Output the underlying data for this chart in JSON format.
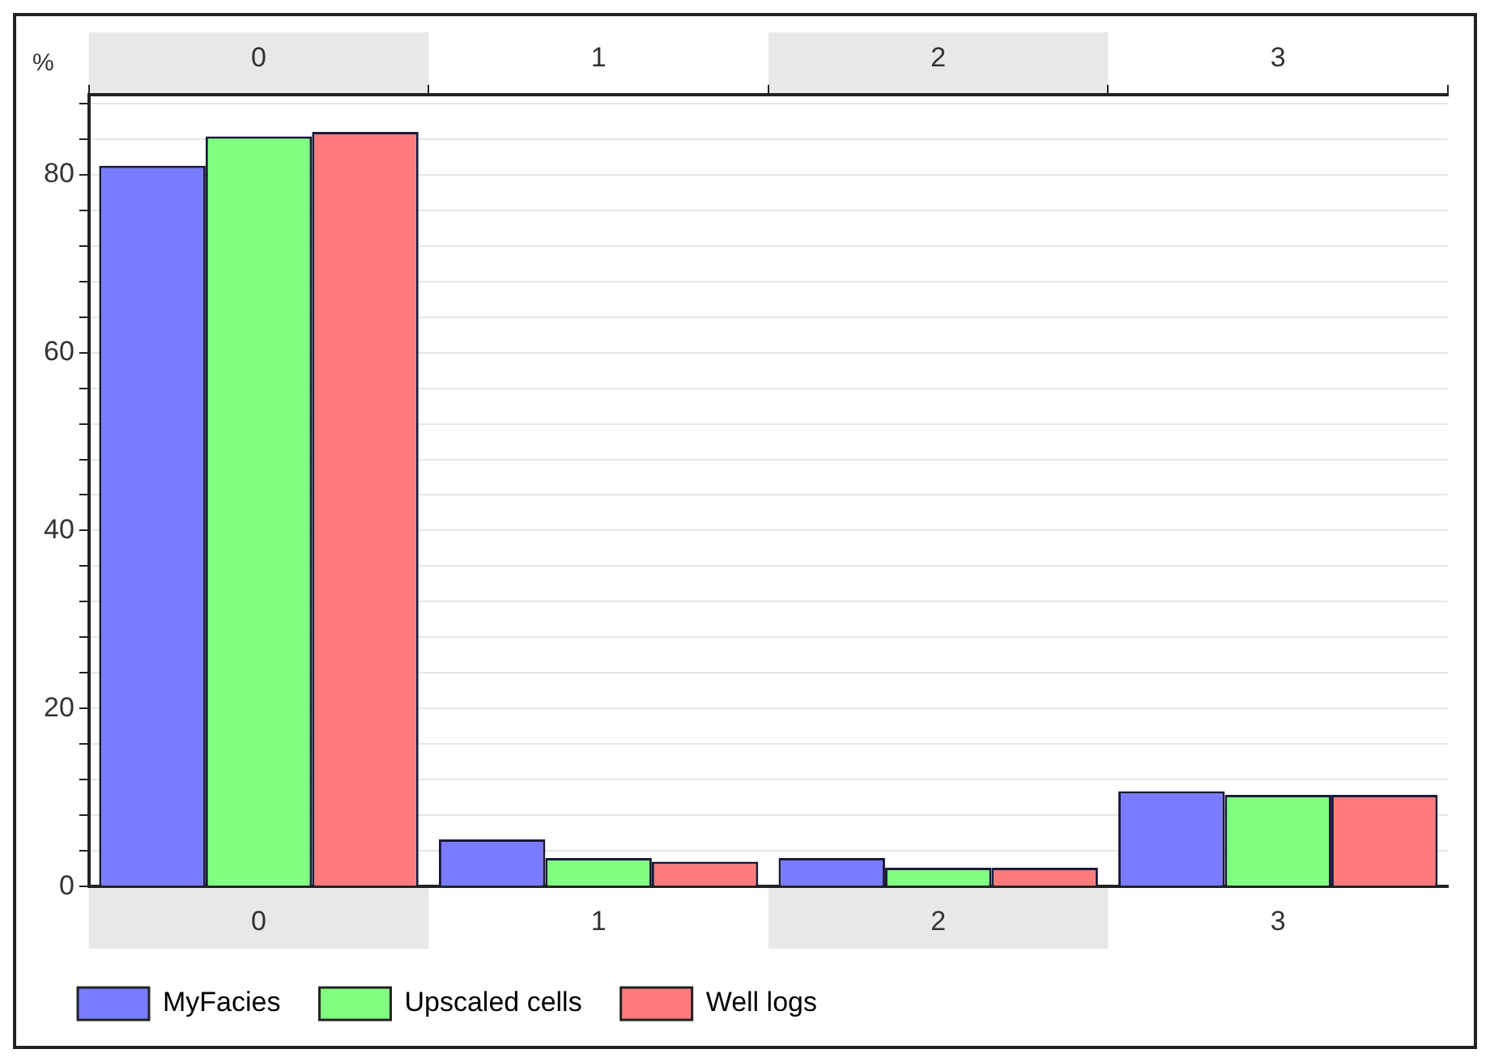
{
  "chart_data": {
    "type": "bar",
    "ylabel": "%",
    "categories": [
      "0",
      "1",
      "2",
      "3"
    ],
    "series": [
      {
        "name": "MyFacies",
        "color": "#7b7bff",
        "values": [
          81.0,
          5.3,
          3.2,
          10.7
        ]
      },
      {
        "name": "Upscaled cells",
        "color": "#80ff80",
        "values": [
          84.3,
          3.2,
          2.1,
          10.3
        ]
      },
      {
        "name": "Well logs",
        "color": "#ff7b7b",
        "values": [
          84.8,
          2.8,
          2.1,
          10.3
        ]
      }
    ],
    "ylim": [
      0,
      89
    ],
    "yticks": [
      0,
      {
        "value": 4,
        "label": null
      },
      {
        "value": 8,
        "label": null
      },
      {
        "value": 12,
        "label": null
      },
      {
        "value": 16,
        "label": null
      },
      20,
      {
        "value": 24,
        "label": null
      },
      {
        "value": 28,
        "label": null
      },
      {
        "value": 32,
        "label": null
      },
      {
        "value": 36,
        "label": null
      },
      40,
      {
        "value": 44,
        "label": null
      },
      {
        "value": 48,
        "label": null
      },
      {
        "value": 52,
        "label": null
      },
      {
        "value": 56,
        "label": null
      },
      60,
      {
        "value": 64,
        "label": null
      },
      {
        "value": 68,
        "label": null
      },
      {
        "value": 72,
        "label": null
      },
      {
        "value": 76,
        "label": null
      },
      80,
      {
        "value": 84,
        "label": null
      },
      {
        "value": 88,
        "label": null
      }
    ],
    "grid": "y",
    "legend": "bottom"
  }
}
